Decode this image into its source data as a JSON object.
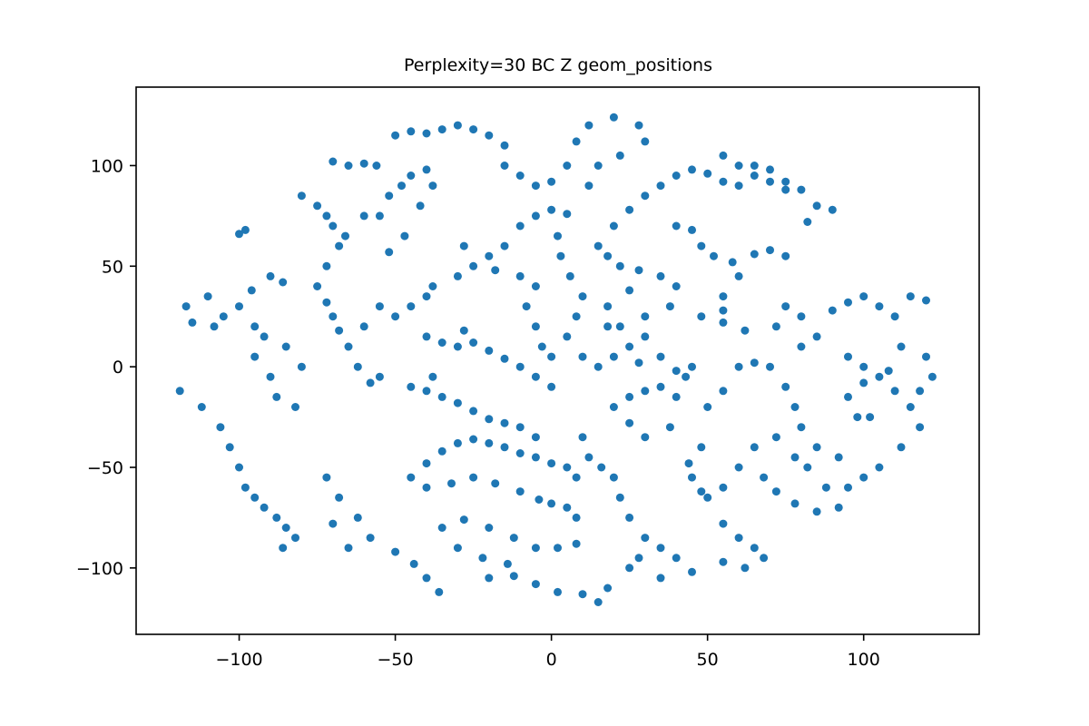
{
  "chart_data": {
    "type": "scatter",
    "title": "Perplexity=30 BC Z geom_positions",
    "xlabel": "",
    "ylabel": "",
    "xlim": [
      -133,
      137
    ],
    "ylim": [
      -133,
      139
    ],
    "grid": false,
    "marker_color": "#1f77b4",
    "x_ticks": [
      {
        "value": -100,
        "label": "−100"
      },
      {
        "value": -50,
        "label": "−50"
      },
      {
        "value": 0,
        "label": "0"
      },
      {
        "value": 50,
        "label": "50"
      },
      {
        "value": 100,
        "label": "100"
      }
    ],
    "y_ticks": [
      {
        "value": 100,
        "label": "100"
      },
      {
        "value": 50,
        "label": "50"
      },
      {
        "value": 0,
        "label": "0"
      },
      {
        "value": -50,
        "label": "−50"
      },
      {
        "value": -100,
        "label": "−100"
      }
    ],
    "series": [
      {
        "points": [
          [
            -117,
            30
          ],
          [
            -115,
            22
          ],
          [
            -110,
            35
          ],
          [
            -105,
            25
          ],
          [
            -100,
            30
          ],
          [
            -96,
            38
          ],
          [
            -90,
            45
          ],
          [
            -86,
            42
          ],
          [
            -95,
            20
          ],
          [
            -108,
            20
          ],
          [
            -119,
            -12
          ],
          [
            -112,
            -20
          ],
          [
            -106,
            -30
          ],
          [
            -103,
            -40
          ],
          [
            -100,
            -50
          ],
          [
            -98,
            -60
          ],
          [
            -95,
            -65
          ],
          [
            -92,
            -70
          ],
          [
            -88,
            -75
          ],
          [
            -85,
            -80
          ],
          [
            -82,
            -85
          ],
          [
            -86,
            -90
          ],
          [
            -100,
            66
          ],
          [
            -98,
            68
          ],
          [
            -95,
            5
          ],
          [
            -90,
            -5
          ],
          [
            -85,
            10
          ],
          [
            -88,
            -15
          ],
          [
            -80,
            0
          ],
          [
            -82,
            -20
          ],
          [
            -92,
            15
          ],
          [
            -80,
            85
          ],
          [
            -75,
            80
          ],
          [
            -72,
            75
          ],
          [
            -70,
            70
          ],
          [
            -68,
            60
          ],
          [
            -72,
            50
          ],
          [
            -75,
            40
          ],
          [
            -66,
            65
          ],
          [
            -60,
            75
          ],
          [
            -70,
            102
          ],
          [
            -65,
            100
          ],
          [
            -60,
            101
          ],
          [
            -56,
            100
          ],
          [
            -70,
            25
          ],
          [
            -68,
            18
          ],
          [
            -65,
            10
          ],
          [
            -62,
            0
          ],
          [
            -58,
            -8
          ],
          [
            -72,
            32
          ],
          [
            -55,
            -5
          ],
          [
            -72,
            -55
          ],
          [
            -68,
            -65
          ],
          [
            -62,
            -75
          ],
          [
            -58,
            -85
          ],
          [
            -50,
            -92
          ],
          [
            -44,
            -98
          ],
          [
            -40,
            -105
          ],
          [
            -36,
            -112
          ],
          [
            -70,
            -78
          ],
          [
            -65,
            -90
          ],
          [
            -45,
            -55
          ],
          [
            -40,
            -48
          ],
          [
            -35,
            -42
          ],
          [
            -30,
            -38
          ],
          [
            -25,
            -36
          ],
          [
            -20,
            -38
          ],
          [
            -15,
            -40
          ],
          [
            -10,
            -43
          ],
          [
            -5,
            -45
          ],
          [
            0,
            -48
          ],
          [
            5,
            -50
          ],
          [
            8,
            -55
          ],
          [
            -40,
            -60
          ],
          [
            -32,
            -58
          ],
          [
            -25,
            -55
          ],
          [
            -18,
            -58
          ],
          [
            -10,
            -62
          ],
          [
            -4,
            -66
          ],
          [
            0,
            -68
          ],
          [
            5,
            -70
          ],
          [
            8,
            -75
          ],
          [
            -35,
            -80
          ],
          [
            -28,
            -76
          ],
          [
            -20,
            -80
          ],
          [
            -12,
            -85
          ],
          [
            -5,
            -90
          ],
          [
            2,
            -90
          ],
          [
            8,
            -88
          ],
          [
            -30,
            -90
          ],
          [
            -22,
            -95
          ],
          [
            -14,
            -98
          ],
          [
            -5,
            -108
          ],
          [
            2,
            -112
          ],
          [
            10,
            -113
          ],
          [
            18,
            -110
          ],
          [
            25,
            -100
          ],
          [
            28,
            -95
          ],
          [
            -12,
            -104
          ],
          [
            -20,
            -105
          ],
          [
            15,
            -117
          ],
          [
            -55,
            75
          ],
          [
            -52,
            85
          ],
          [
            -48,
            90
          ],
          [
            -45,
            95
          ],
          [
            -40,
            98
          ],
          [
            -38,
            90
          ],
          [
            -42,
            80
          ],
          [
            -47,
            65
          ],
          [
            -52,
            57
          ],
          [
            -50,
            115
          ],
          [
            -45,
            117
          ],
          [
            -40,
            116
          ],
          [
            -35,
            118
          ],
          [
            -30,
            120
          ],
          [
            -25,
            118
          ],
          [
            -20,
            115
          ],
          [
            -15,
            110
          ],
          [
            -15,
            100
          ],
          [
            -10,
            95
          ],
          [
            -5,
            90
          ],
          [
            0,
            92
          ],
          [
            5,
            100
          ],
          [
            8,
            112
          ],
          [
            12,
            120
          ],
          [
            20,
            124
          ],
          [
            28,
            120
          ],
          [
            30,
            112
          ],
          [
            22,
            105
          ],
          [
            15,
            100
          ],
          [
            12,
            90
          ],
          [
            -60,
            20
          ],
          [
            -55,
            30
          ],
          [
            -50,
            25
          ],
          [
            -45,
            30
          ],
          [
            -40,
            35
          ],
          [
            -38,
            40
          ],
          [
            -30,
            45
          ],
          [
            -25,
            50
          ],
          [
            -20,
            55
          ],
          [
            -15,
            60
          ],
          [
            -10,
            70
          ],
          [
            -5,
            75
          ],
          [
            0,
            78
          ],
          [
            5,
            76
          ],
          [
            -28,
            60
          ],
          [
            -18,
            48
          ],
          [
            -45,
            -10
          ],
          [
            -40,
            -12
          ],
          [
            -35,
            -15
          ],
          [
            -30,
            -18
          ],
          [
            -25,
            -22
          ],
          [
            -20,
            -26
          ],
          [
            -15,
            -28
          ],
          [
            -10,
            -30
          ],
          [
            -5,
            -35
          ],
          [
            -38,
            -5
          ],
          [
            -40,
            15
          ],
          [
            -35,
            12
          ],
          [
            -30,
            10
          ],
          [
            -25,
            12
          ],
          [
            -20,
            8
          ],
          [
            -15,
            4
          ],
          [
            -10,
            0
          ],
          [
            -5,
            -5
          ],
          [
            0,
            -10
          ],
          [
            -28,
            18
          ],
          [
            -10,
            45
          ],
          [
            -5,
            40
          ],
          [
            -8,
            30
          ],
          [
            -5,
            20
          ],
          [
            -3,
            10
          ],
          [
            0,
            5
          ],
          [
            5,
            15
          ],
          [
            8,
            25
          ],
          [
            10,
            35
          ],
          [
            6,
            45
          ],
          [
            3,
            55
          ],
          [
            2,
            65
          ],
          [
            10,
            -35
          ],
          [
            12,
            -45
          ],
          [
            16,
            -50
          ],
          [
            20,
            -55
          ],
          [
            22,
            -65
          ],
          [
            25,
            -75
          ],
          [
            30,
            -85
          ],
          [
            35,
            -90
          ],
          [
            40,
            -95
          ],
          [
            45,
            -102
          ],
          [
            35,
            -105
          ],
          [
            20,
            -20
          ],
          [
            25,
            -15
          ],
          [
            30,
            -12
          ],
          [
            35,
            -10
          ],
          [
            40,
            -15
          ],
          [
            43,
            -5
          ],
          [
            38,
            -30
          ],
          [
            30,
            -35
          ],
          [
            25,
            -28
          ],
          [
            45,
            -55
          ],
          [
            48,
            -62
          ],
          [
            10,
            5
          ],
          [
            15,
            0
          ],
          [
            20,
            5
          ],
          [
            25,
            10
          ],
          [
            30,
            15
          ],
          [
            35,
            5
          ],
          [
            40,
            -2
          ],
          [
            45,
            0
          ],
          [
            18,
            20
          ],
          [
            28,
            2
          ],
          [
            15,
            60
          ],
          [
            20,
            70
          ],
          [
            25,
            78
          ],
          [
            30,
            85
          ],
          [
            35,
            90
          ],
          [
            40,
            95
          ],
          [
            45,
            98
          ],
          [
            50,
            96
          ],
          [
            55,
            92
          ],
          [
            60,
            90
          ],
          [
            65,
            95
          ],
          [
            70,
            92
          ],
          [
            75,
            88
          ],
          [
            18,
            55
          ],
          [
            22,
            50
          ],
          [
            28,
            48
          ],
          [
            35,
            45
          ],
          [
            40,
            40
          ],
          [
            38,
            30
          ],
          [
            30,
            25
          ],
          [
            22,
            20
          ],
          [
            18,
            30
          ],
          [
            25,
            38
          ],
          [
            48,
            25
          ],
          [
            55,
            22
          ],
          [
            62,
            18
          ],
          [
            55,
            28
          ],
          [
            40,
            70
          ],
          [
            45,
            68
          ],
          [
            48,
            60
          ],
          [
            52,
            55
          ],
          [
            58,
            52
          ],
          [
            65,
            56
          ],
          [
            70,
            58
          ],
          [
            75,
            55
          ],
          [
            60,
            45
          ],
          [
            55,
            35
          ],
          [
            55,
            105
          ],
          [
            60,
            100
          ],
          [
            65,
            100
          ],
          [
            70,
            98
          ],
          [
            75,
            92
          ],
          [
            80,
            88
          ],
          [
            85,
            80
          ],
          [
            90,
            78
          ],
          [
            82,
            72
          ],
          [
            50,
            -20
          ],
          [
            55,
            -12
          ],
          [
            60,
            0
          ],
          [
            65,
            2
          ],
          [
            70,
            0
          ],
          [
            75,
            -10
          ],
          [
            78,
            -20
          ],
          [
            80,
            -30
          ],
          [
            72,
            -35
          ],
          [
            65,
            -40
          ],
          [
            60,
            -50
          ],
          [
            55,
            -60
          ],
          [
            48,
            -40
          ],
          [
            44,
            -48
          ],
          [
            50,
            -65
          ],
          [
            55,
            -78
          ],
          [
            60,
            -85
          ],
          [
            65,
            -90
          ],
          [
            68,
            -95
          ],
          [
            62,
            -100
          ],
          [
            55,
            -97
          ],
          [
            68,
            -55
          ],
          [
            72,
            -62
          ],
          [
            78,
            -68
          ],
          [
            85,
            -72
          ],
          [
            92,
            -70
          ],
          [
            88,
            -60
          ],
          [
            82,
            -50
          ],
          [
            85,
            -40
          ],
          [
            78,
            -45
          ],
          [
            72,
            20
          ],
          [
            75,
            30
          ],
          [
            80,
            25
          ],
          [
            85,
            15
          ],
          [
            90,
            28
          ],
          [
            95,
            32
          ],
          [
            100,
            35
          ],
          [
            105,
            30
          ],
          [
            110,
            25
          ],
          [
            115,
            35
          ],
          [
            120,
            33
          ],
          [
            80,
            10
          ],
          [
            95,
            5
          ],
          [
            100,
            0
          ],
          [
            105,
            -5
          ],
          [
            110,
            -12
          ],
          [
            115,
            -20
          ],
          [
            118,
            -30
          ],
          [
            112,
            -40
          ],
          [
            105,
            -50
          ],
          [
            100,
            -55
          ],
          [
            95,
            -60
          ],
          [
            92,
            -45
          ],
          [
            98,
            -25
          ],
          [
            112,
            10
          ],
          [
            120,
            5
          ],
          [
            122,
            -5
          ],
          [
            118,
            -12
          ],
          [
            108,
            -2
          ],
          [
            95,
            -15
          ],
          [
            100,
            -8
          ],
          [
            102,
            -25
          ]
        ]
      }
    ]
  }
}
